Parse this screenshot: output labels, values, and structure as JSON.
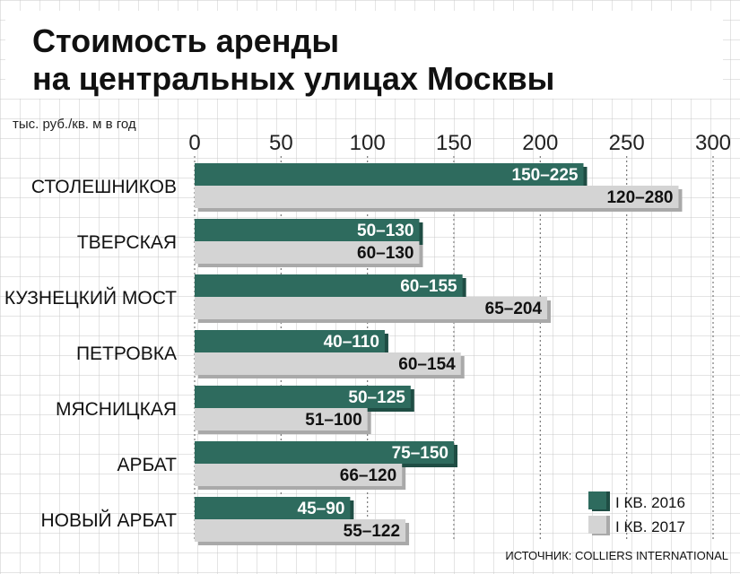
{
  "chart_data": {
    "type": "bar",
    "title_line1": "Стоимость аренды",
    "title_line2": "на центральных улицах Москвы",
    "unit_label": "тыс. руб./кв. м в год",
    "xlim": [
      0,
      300
    ],
    "ticks": [
      "0",
      "50",
      "100",
      "150",
      "200",
      "250",
      "300"
    ],
    "grid": true,
    "legend_position": "bottom-right",
    "source": "ИСТОЧНИК: COLLIERS INTERNATIONAL",
    "series": [
      {
        "name": "I КВ. 2016",
        "color": "#2e6b5e"
      },
      {
        "name": "I КВ. 2017",
        "color": "#d4d4d4"
      }
    ],
    "categories": [
      {
        "name": "СТОЛЕШНИКОВ",
        "values": [
          {
            "low": 150,
            "high": 225,
            "label": "150–225"
          },
          {
            "low": 120,
            "high": 280,
            "label": "120–280"
          }
        ]
      },
      {
        "name": "ТВЕРСКАЯ",
        "values": [
          {
            "low": 50,
            "high": 130,
            "label": "50–130"
          },
          {
            "low": 60,
            "high": 130,
            "label": "60–130"
          }
        ]
      },
      {
        "name": "КУЗНЕЦКИЙ МОСТ",
        "values": [
          {
            "low": 60,
            "high": 155,
            "label": "60–155"
          },
          {
            "low": 65,
            "high": 204,
            "label": "65–204"
          }
        ]
      },
      {
        "name": "ПЕТРОВКА",
        "values": [
          {
            "low": 40,
            "high": 110,
            "label": "40–110"
          },
          {
            "low": 60,
            "high": 154,
            "label": "60–154"
          }
        ]
      },
      {
        "name": "МЯСНИЦКАЯ",
        "values": [
          {
            "low": 50,
            "high": 125,
            "label": "50–125"
          },
          {
            "low": 51,
            "high": 100,
            "label": "51–100"
          }
        ]
      },
      {
        "name": "АРБАТ",
        "values": [
          {
            "low": 75,
            "high": 150,
            "label": "75–150"
          },
          {
            "low": 66,
            "high": 120,
            "label": "66–120"
          }
        ]
      },
      {
        "name": "НОВЫЙ АРБАТ",
        "values": [
          {
            "low": 45,
            "high": 90,
            "label": "45–90"
          },
          {
            "low": 55,
            "high": 122,
            "label": "55–122"
          }
        ]
      }
    ]
  }
}
